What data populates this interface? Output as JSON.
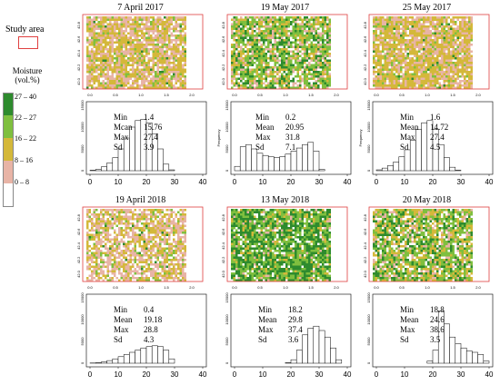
{
  "legend": {
    "study_area_label": "Study area",
    "moisture_title_line1": "Moisture",
    "moisture_title_line2": "(vol.%)",
    "classes": [
      {
        "label": "27 – 40",
        "color": "#2e8b2e"
      },
      {
        "label": "22 – 27",
        "color": "#7fbf3f"
      },
      {
        "label": "16 – 22",
        "color": "#d4b83a"
      },
      {
        "label": "8 – 16",
        "color": "#e8b4a6"
      },
      {
        "label": "0 – 8",
        "color": "#ffffff"
      }
    ],
    "box_color": "#e04040"
  },
  "panels": [
    {
      "title": "7 April 2017",
      "map_x_ticks": [
        "0.0",
        "0.5",
        "1.0",
        "1.5",
        "2.0"
      ],
      "map_y_ticks": [
        "42.8",
        "42.6",
        "42.4",
        "42.2",
        "42.0"
      ],
      "stats": {
        "labels": [
          "Min",
          "Mcan",
          "Max",
          "Sd"
        ],
        "values": [
          "1.4",
          "15.76",
          "27.4",
          "3.9"
        ]
      },
      "chart_data": {
        "type": "bar",
        "xlim": [
          0,
          40
        ],
        "ylim": [
          0,
          15000
        ],
        "x_ticks": [
          "0",
          "10",
          "20",
          "30",
          "40"
        ],
        "y_ticks": [
          "0",
          "5000",
          "10000",
          "15000"
        ],
        "bins": [
          0,
          2,
          4,
          6,
          8,
          10,
          12,
          14,
          16,
          18,
          20,
          22,
          24,
          26,
          28
        ],
        "values": [
          100,
          300,
          900,
          1800,
          3000,
          5000,
          7500,
          10000,
          11500,
          11800,
          11000,
          8500,
          5000,
          1500,
          200
        ]
      }
    },
    {
      "title": "19 May 2017",
      "map_x_ticks": [
        "0.0",
        "0.5",
        "1.0",
        "1.5",
        "2.0"
      ],
      "map_y_ticks": [
        "42.8",
        "42.6",
        "42.4",
        "42.2",
        "42.0"
      ],
      "stats": {
        "labels": [
          "Min",
          "Mean",
          "Max",
          "Sd"
        ],
        "values": [
          "0.2",
          "20.95",
          "31.8",
          "7.1"
        ]
      },
      "chart_data": {
        "type": "bar",
        "xlim": [
          0,
          40
        ],
        "ylim": [
          0,
          15000
        ],
        "ylabel": "Frequency",
        "x_ticks": [
          "0",
          "10",
          "20",
          "30",
          "40"
        ],
        "y_ticks": [
          "0",
          "5000",
          "10000",
          "15000"
        ],
        "bins": [
          0,
          2,
          4,
          6,
          8,
          10,
          12,
          14,
          16,
          18,
          20,
          22,
          24,
          26,
          28,
          30
        ],
        "values": [
          1000,
          5500,
          6000,
          5000,
          4000,
          3500,
          3200,
          3000,
          3200,
          3800,
          4500,
          5200,
          6000,
          6500,
          4500,
          300
        ]
      }
    },
    {
      "title": "25 May 2017",
      "map_x_ticks": [
        "0.0",
        "0.5",
        "1.0",
        "1.5",
        "2.0"
      ],
      "map_y_ticks": [
        "42.8",
        "42.6",
        "42.4",
        "42.2",
        "42.0"
      ],
      "stats": {
        "labels": [
          "Min",
          "Mean",
          "Max",
          "Sd"
        ],
        "values": [
          "1.6",
          "14.72",
          "27.4",
          "4.5"
        ]
      },
      "chart_data": {
        "type": "bar",
        "xlim": [
          0,
          40
        ],
        "ylim": [
          0,
          15000
        ],
        "ylabel": "Frequency",
        "x_ticks": [
          "0",
          "10",
          "20",
          "30",
          "40"
        ],
        "y_ticks": [
          "0",
          "5000",
          "10000",
          "15000"
        ],
        "bins": [
          0,
          2,
          4,
          6,
          8,
          10,
          12,
          14,
          16,
          18,
          20,
          22,
          24,
          26,
          28
        ],
        "values": [
          200,
          600,
          1200,
          2000,
          3200,
          4800,
          7000,
          9500,
          11000,
          11500,
          9500,
          6000,
          3000,
          800,
          100
        ]
      }
    },
    {
      "title": "19 April 2018",
      "map_x_ticks": [
        "0.0",
        "0.5",
        "1.0",
        "1.5",
        "2.0"
      ],
      "map_y_ticks": [
        "42.8",
        "42.6",
        "42.4",
        "42.2",
        "42.0"
      ],
      "stats": {
        "labels": [
          "Min",
          "Mean",
          "Max",
          "Sd"
        ],
        "values": [
          "0.4",
          "19.18",
          "28.8",
          "4.3"
        ]
      },
      "chart_data": {
        "type": "bar",
        "xlim": [
          0,
          40
        ],
        "ylim": [
          0,
          15000
        ],
        "x_ticks": [
          "0",
          "10",
          "20",
          "30",
          "40"
        ],
        "y_ticks": [
          "0",
          "5000",
          "10000",
          "15000"
        ],
        "bins": [
          0,
          2,
          4,
          6,
          8,
          10,
          12,
          14,
          16,
          18,
          20,
          22,
          24,
          26,
          28
        ],
        "values": [
          50,
          100,
          300,
          600,
          1000,
          1500,
          2000,
          2500,
          3000,
          3500,
          3800,
          4000,
          3800,
          3000,
          1000
        ]
      }
    },
    {
      "title": "13 May 2018",
      "map_x_ticks": [
        "0.0",
        "0.5",
        "1.0",
        "1.5",
        "2.0"
      ],
      "map_y_ticks": [
        "42.8",
        "42.6",
        "42.4",
        "42.2",
        "42.0"
      ],
      "stats": {
        "labels": [
          "Min",
          "Mean",
          "Max",
          "Sd"
        ],
        "values": [
          "18.2",
          "29.8",
          "37.4",
          "3.6"
        ]
      },
      "chart_data": {
        "type": "bar",
        "xlim": [
          0,
          40
        ],
        "ylim": [
          0,
          15000
        ],
        "x_ticks": [
          "0",
          "10",
          "20",
          "30",
          "40"
        ],
        "y_ticks": [
          "0",
          "5000",
          "10000",
          "15000"
        ],
        "bins": [
          18,
          20,
          22,
          24,
          26,
          28,
          30,
          32,
          34,
          36
        ],
        "values": [
          100,
          800,
          3000,
          6500,
          8000,
          8500,
          7500,
          6000,
          3500,
          800
        ]
      }
    },
    {
      "title": "20 May 2018",
      "map_x_ticks": [
        "0.0",
        "0.5",
        "1.0",
        "1.5",
        "2.0"
      ],
      "map_y_ticks": [
        "42.8",
        "42.6",
        "42.4",
        "42.2",
        "42.0"
      ],
      "stats": {
        "labels": [
          "Min",
          "Mean",
          "Max",
          "Sd"
        ],
        "values": [
          "18.8",
          "24.6",
          "38.6",
          "3.5"
        ]
      },
      "chart_data": {
        "type": "bar",
        "xlim": [
          0,
          40
        ],
        "ylim": [
          0,
          15000
        ],
        "x_ticks": [
          "0",
          "10",
          "20",
          "30",
          "40"
        ],
        "y_ticks": [
          "0",
          "5000",
          "10000",
          "15000"
        ],
        "bins": [
          18,
          20,
          22,
          24,
          26,
          28,
          30,
          32,
          34,
          36,
          38
        ],
        "values": [
          500,
          3000,
          12000,
          9000,
          6000,
          4500,
          3500,
          2800,
          2500,
          2000,
          500
        ]
      }
    }
  ]
}
